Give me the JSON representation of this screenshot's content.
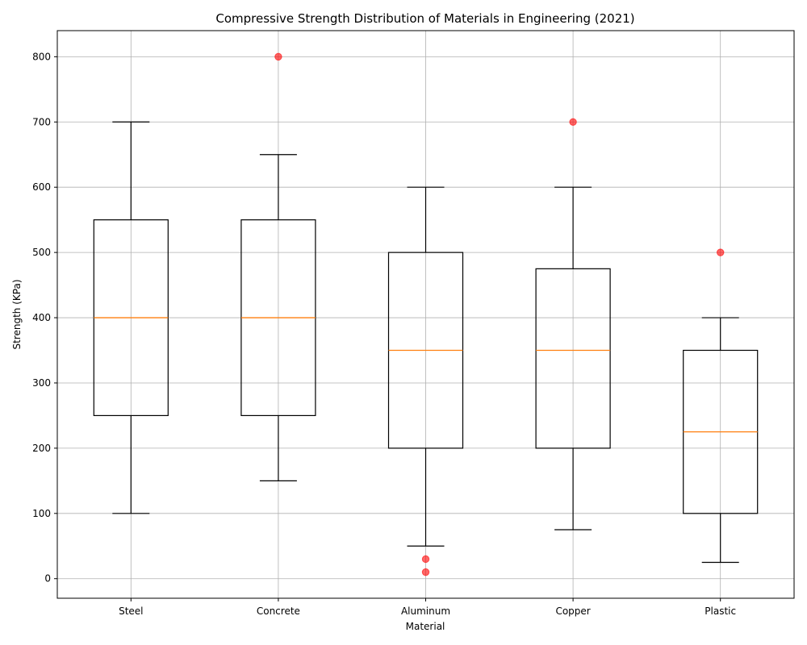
{
  "chart_data": {
    "type": "box",
    "title": "Compressive Strength Distribution of Materials in Engineering (2021)",
    "xlabel": "Material",
    "ylabel": "Strength (KPa)",
    "ylim": [
      -30,
      840
    ],
    "yticks": [
      0,
      100,
      200,
      300,
      400,
      500,
      600,
      700,
      800
    ],
    "grid": true,
    "categories": [
      "Steel",
      "Concrete",
      "Aluminum",
      "Copper",
      "Plastic"
    ],
    "boxes": [
      {
        "name": "Steel",
        "whisker_low": 100,
        "q1": 250,
        "median": 400,
        "q3": 550,
        "whisker_high": 700,
        "outliers": []
      },
      {
        "name": "Concrete",
        "whisker_low": 150,
        "q1": 250,
        "median": 400,
        "q3": 550,
        "whisker_high": 650,
        "outliers": [
          800
        ]
      },
      {
        "name": "Aluminum",
        "whisker_low": 50,
        "q1": 200,
        "median": 350,
        "q3": 500,
        "whisker_high": 600,
        "outliers": [
          10,
          30
        ]
      },
      {
        "name": "Copper",
        "whisker_low": 75,
        "q1": 200,
        "median": 350,
        "q3": 475,
        "whisker_high": 600,
        "outliers": [
          700
        ]
      },
      {
        "name": "Plastic",
        "whisker_low": 25,
        "q1": 100,
        "median": 225,
        "q3": 350,
        "whisker_high": 400,
        "outliers": [
          500
        ]
      }
    ],
    "colors": {
      "box": "#000000",
      "median": "#ff7f0e",
      "outlier": "#ff0000",
      "grid": "#b0b0b0"
    }
  }
}
